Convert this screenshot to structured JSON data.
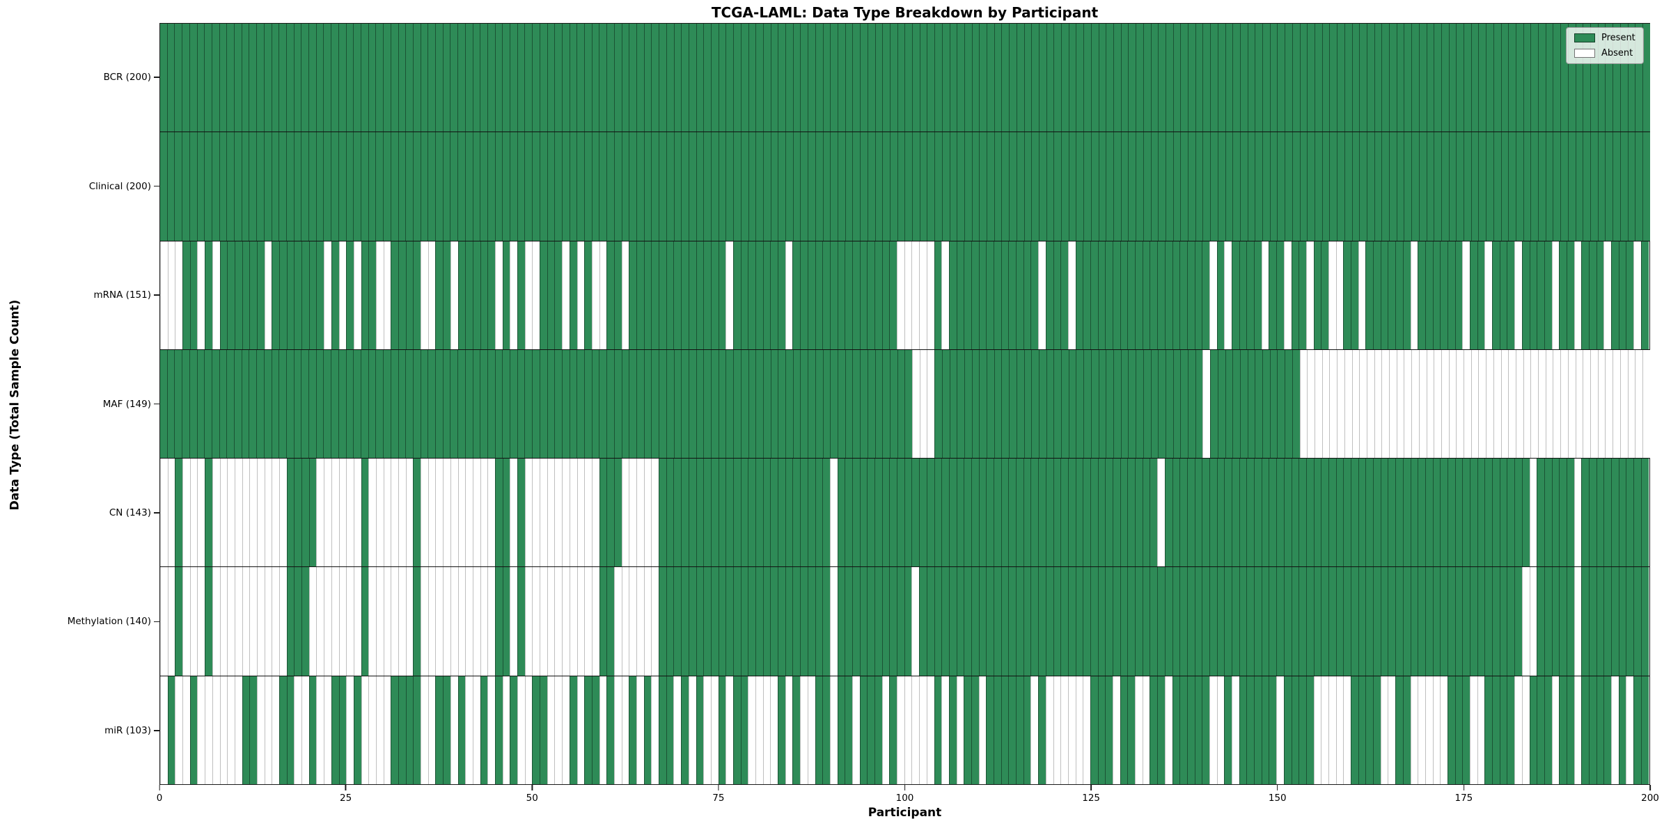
{
  "title": "TCGA-LAML: Data Type Breakdown by Participant",
  "xlabel": "Participant",
  "ylabel": "Data Type (Total Sample Count)",
  "legend": {
    "present_label": "Present",
    "absent_label": "Absent"
  },
  "colors": {
    "present": "#2e8b57",
    "absent": "#ffffff",
    "grid": "#111111",
    "spine": "#1a1a1a"
  },
  "chart_data": {
    "type": "heatmap",
    "title": "TCGA-LAML: Data Type Breakdown by Participant",
    "xlabel": "Participant",
    "ylabel": "Data Type (Total Sample Count)",
    "n_participants": 200,
    "x_ticks": [
      0,
      25,
      50,
      75,
      100,
      125,
      150,
      175,
      200
    ],
    "legend_position": "upper right",
    "value_encoding": {
      "present": 1,
      "absent": 0
    },
    "rows": [
      {
        "name": "BCR",
        "label": "BCR (200)",
        "present_count": 200,
        "absent_indices": []
      },
      {
        "name": "Clinical",
        "label": "Clinical (200)",
        "present_count": 200,
        "absent_indices": []
      },
      {
        "name": "mRNA",
        "label": "mRNA (151)",
        "present_count": 151,
        "absent_indices": [
          0,
          1,
          2,
          5,
          7,
          14,
          22,
          24,
          26,
          29,
          30,
          35,
          36,
          39,
          45,
          47,
          49,
          50,
          54,
          56,
          58,
          59,
          62,
          76,
          84,
          99,
          100,
          101,
          102,
          103,
          105,
          118,
          122,
          141,
          143,
          148,
          151,
          154,
          157,
          158,
          161,
          168,
          175,
          178,
          182,
          187,
          190,
          194,
          198
        ]
      },
      {
        "name": "MAF",
        "label": "MAF (149)",
        "present_count": 149,
        "absent_indices": [
          101,
          102,
          103,
          140,
          153,
          154,
          155,
          156,
          157,
          158,
          159,
          160,
          161,
          162,
          163,
          164,
          165,
          166,
          167,
          168,
          169,
          170,
          171,
          172,
          173,
          174,
          175,
          176,
          177,
          178,
          179,
          180,
          181,
          182,
          183,
          184,
          185,
          186,
          187,
          188,
          189,
          190,
          191,
          192,
          193,
          194,
          195,
          196,
          197,
          198,
          199
        ]
      },
      {
        "name": "CN",
        "label": "CN (143)",
        "present_count": 143,
        "absent_indices": [
          0,
          1,
          3,
          4,
          5,
          7,
          8,
          9,
          10,
          11,
          12,
          13,
          14,
          15,
          16,
          21,
          22,
          23,
          24,
          25,
          26,
          28,
          29,
          30,
          31,
          32,
          33,
          35,
          36,
          37,
          38,
          39,
          40,
          41,
          42,
          43,
          44,
          47,
          49,
          50,
          51,
          52,
          53,
          54,
          55,
          56,
          57,
          58,
          62,
          63,
          64,
          65,
          66,
          90,
          134,
          184,
          190
        ]
      },
      {
        "name": "Methylation",
        "label": "Methylation (140)",
        "present_count": 140,
        "absent_indices": [
          0,
          1,
          3,
          4,
          5,
          7,
          8,
          9,
          10,
          11,
          12,
          13,
          14,
          15,
          16,
          20,
          21,
          22,
          23,
          24,
          25,
          26,
          28,
          29,
          30,
          31,
          32,
          33,
          35,
          36,
          37,
          38,
          39,
          40,
          41,
          42,
          43,
          44,
          47,
          49,
          50,
          51,
          52,
          53,
          54,
          55,
          56,
          57,
          58,
          61,
          62,
          63,
          64,
          65,
          66,
          90,
          101,
          183,
          184,
          190
        ]
      },
      {
        "name": "miR",
        "label": "miR (103)",
        "present_count": 103,
        "absent_indices": [
          0,
          2,
          3,
          5,
          6,
          7,
          8,
          9,
          10,
          13,
          14,
          15,
          18,
          19,
          21,
          22,
          25,
          27,
          28,
          29,
          30,
          35,
          36,
          39,
          41,
          42,
          44,
          46,
          48,
          49,
          52,
          53,
          54,
          56,
          59,
          61,
          62,
          64,
          66,
          69,
          71,
          73,
          74,
          76,
          79,
          80,
          81,
          82,
          84,
          86,
          87,
          90,
          93,
          97,
          99,
          100,
          101,
          102,
          103,
          105,
          107,
          110,
          117,
          119,
          120,
          121,
          122,
          123,
          124,
          128,
          131,
          132,
          135,
          141,
          142,
          144,
          150,
          155,
          156,
          157,
          158,
          159,
          164,
          165,
          168,
          169,
          170,
          171,
          172,
          176,
          177,
          182,
          183,
          187,
          190,
          195,
          197
        ]
      }
    ]
  }
}
